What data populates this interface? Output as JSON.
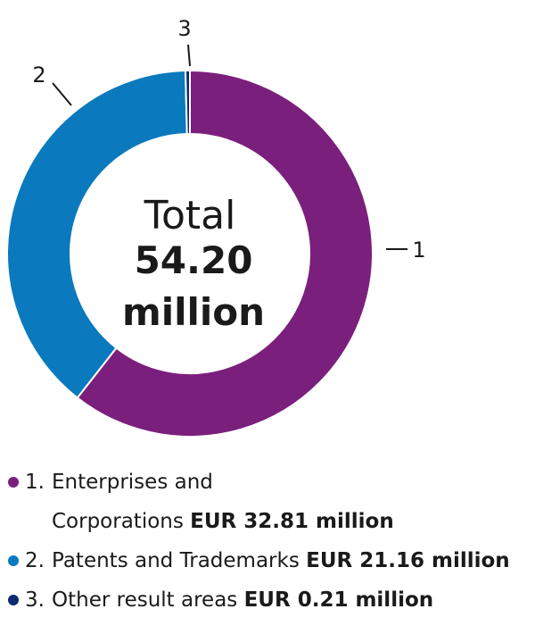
{
  "chart_data": {
    "type": "pie",
    "subtype": "donut",
    "center": {
      "line1": "Total",
      "line2": "54.20",
      "line3": "million"
    },
    "slices": [
      {
        "id": "1",
        "label": "Enterprises and Corporations",
        "value": 32.81,
        "color": "#7b1f7d"
      },
      {
        "id": "2",
        "label": "Patents and Trademarks",
        "value": 21.16,
        "color": "#0a79be"
      },
      {
        "id": "3",
        "label": "Other result areas",
        "value": 0.21,
        "color": "#0c2a6e"
      }
    ]
  },
  "legend": [
    {
      "num": "1.",
      "label_line1": "Enterprises and",
      "label_line2": "Corporations",
      "value": "EUR 32.81 million",
      "color": "#7b1f7d"
    },
    {
      "num": "2.",
      "label": "Patents and Trademarks",
      "value": "EUR 21.16 million",
      "color": "#0a79be"
    },
    {
      "num": "3.",
      "label": "Other result areas",
      "value": "EUR 0.21 million",
      "color": "#0c2a6e"
    }
  ]
}
